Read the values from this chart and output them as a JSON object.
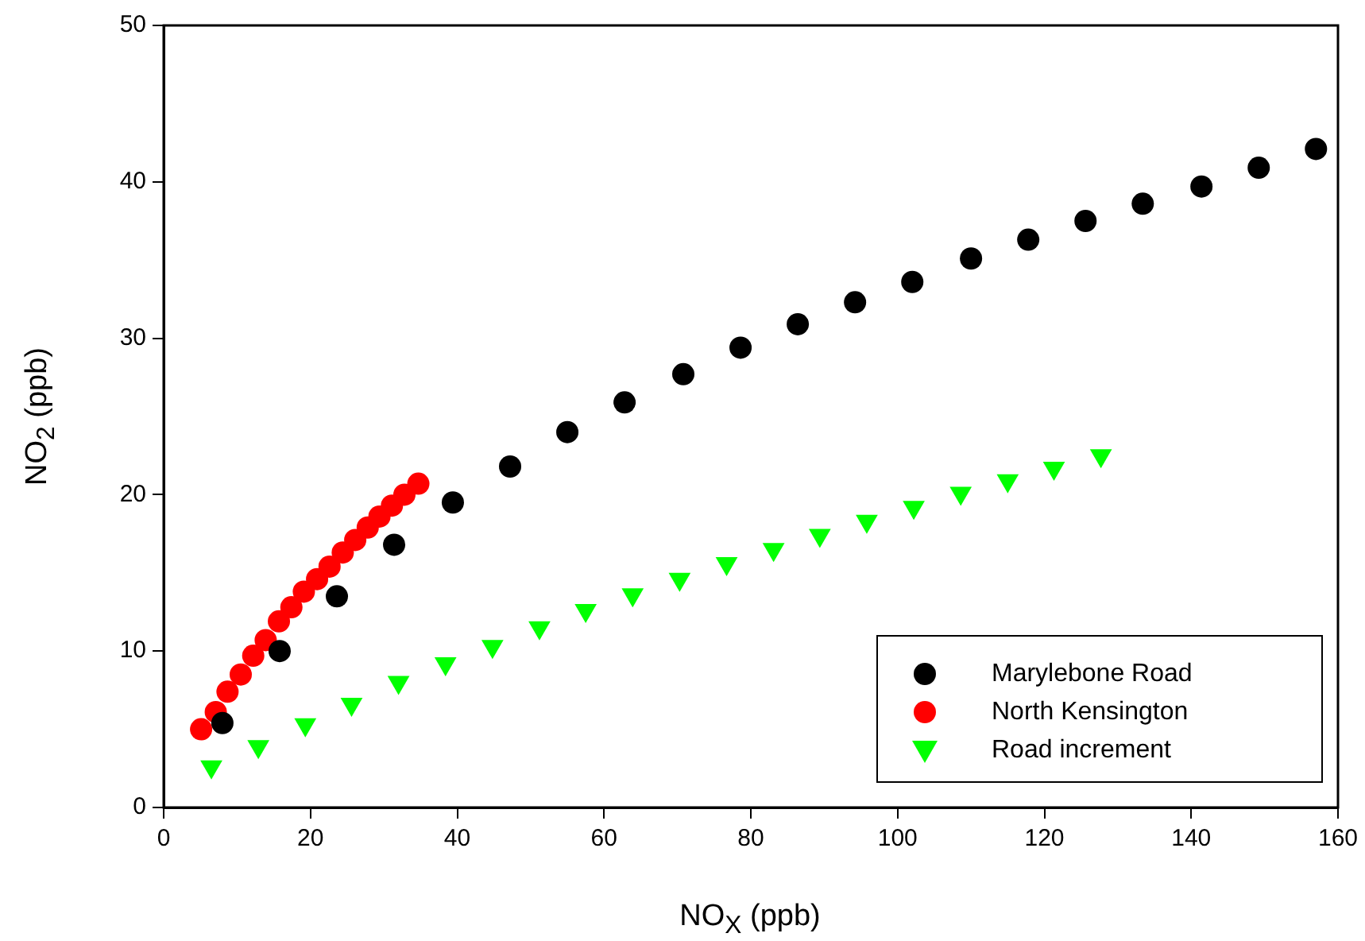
{
  "chart_data": {
    "type": "scatter",
    "xlabel": "NO$_{X}$ (ppb)",
    "ylabel": "NO$_{2}$ (ppb)",
    "xlim": [
      0,
      160
    ],
    "xticks": [
      0,
      20,
      40,
      60,
      80,
      100,
      120,
      140,
      160
    ],
    "ylim": [
      0,
      50
    ],
    "yticks": [
      0,
      10,
      20,
      30,
      40,
      50
    ],
    "grid": false,
    "legend": "bottom right",
    "series": [
      {
        "name": "Marylebone Road",
        "color": "#000000",
        "marker": "circle",
        "x": [
          8,
          15.8,
          23.6,
          31.4,
          39.4,
          47.2,
          55,
          62.8,
          70.8,
          78.6,
          86.4,
          94.2,
          102,
          110,
          117.8,
          125.6,
          133.4,
          141.4,
          149.2,
          157
        ],
        "values": [
          5.4,
          10,
          13.5,
          16.8,
          19.5,
          21.8,
          24,
          25.9,
          27.7,
          29.4,
          30.9,
          32.3,
          33.6,
          35.1,
          36.3,
          37.5,
          38.6,
          39.7,
          40.9,
          42.1
        ]
      },
      {
        "name": "North Kensington",
        "color": "#ff0000",
        "marker": "circle",
        "x": [
          5.1,
          7.1,
          8.7,
          10.5,
          12.2,
          13.9,
          15.7,
          17.4,
          19.1,
          20.9,
          22.6,
          24.4,
          26.1,
          27.8,
          29.4,
          31.1,
          32.8,
          34.7
        ],
        "values": [
          5,
          6.1,
          7.4,
          8.5,
          9.7,
          10.7,
          11.9,
          12.8,
          13.8,
          14.6,
          15.4,
          16.3,
          17.1,
          17.9,
          18.6,
          19.3,
          20,
          20.7
        ]
      },
      {
        "name": "Road increment",
        "color": "#00ff00",
        "marker": "triangle",
        "x": [
          6.5,
          12.9,
          19.3,
          25.6,
          32,
          38.4,
          44.8,
          51.2,
          57.5,
          63.9,
          70.3,
          76.7,
          83.1,
          89.4,
          95.8,
          102.2,
          108.6,
          115,
          121.3,
          127.7
        ],
        "values": [
          2.6,
          3.9,
          5.3,
          6.6,
          8,
          9.2,
          10.3,
          11.5,
          12.6,
          13.6,
          14.6,
          15.6,
          16.5,
          17.4,
          18.3,
          19.2,
          20.1,
          20.9,
          21.7,
          22.5
        ]
      }
    ]
  }
}
